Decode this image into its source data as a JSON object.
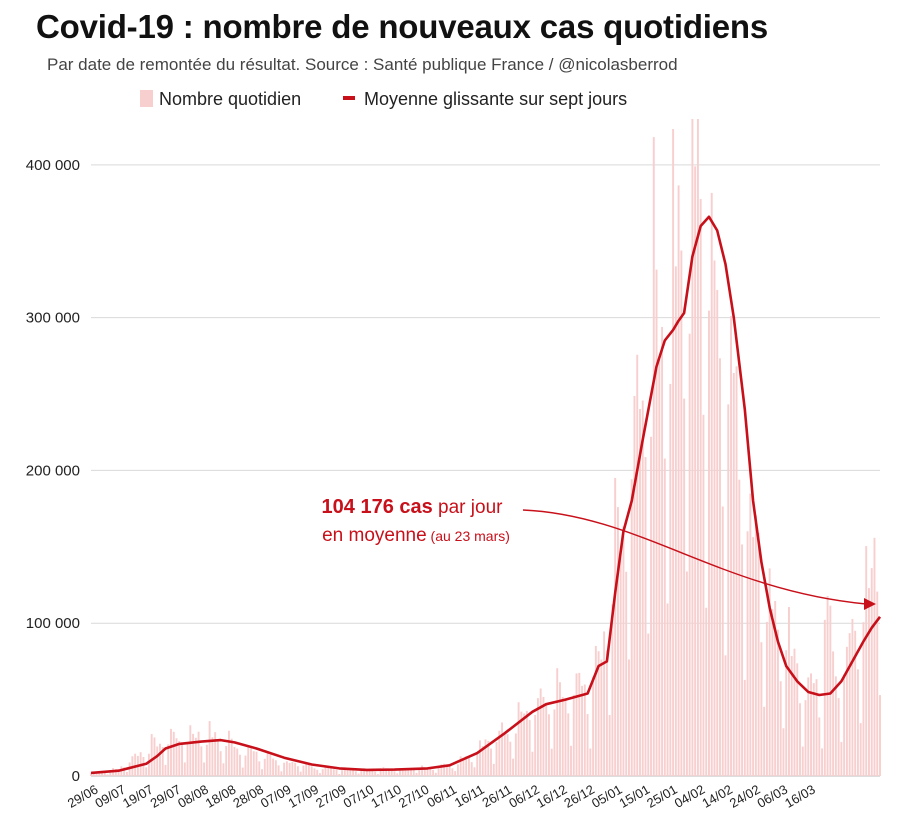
{
  "title": "Covid-19 : nombre de nouveaux cas quotidiens",
  "subtitle": "Par date de remontée du résultat. Source : Santé publique France / @nicolasberrod",
  "colors": {
    "daily_bar": "#f8cfcf",
    "average_line": "#c8101a",
    "grid": "#d9d9d9",
    "annotation": "#c8101a"
  },
  "annotation": {
    "value_text": "104 176 cas",
    "per_day_text": " par jour",
    "line2_text": "en moyenne",
    "date_text": " (au 23 mars)"
  },
  "chart_data": {
    "type": "bar",
    "title": "Covid-19 : nombre de nouveaux cas quotidiens",
    "subtitle": "Par date de remontée du résultat. Source : Santé publique France / @nicolasberrod",
    "xlabel": "",
    "ylabel": "",
    "ylim": [
      0,
      430000
    ],
    "grid": true,
    "legend_placement": "top-center",
    "x_ticks": [
      "29/06",
      "09/07",
      "19/07",
      "29/07",
      "08/08",
      "18/08",
      "28/08",
      "07/09",
      "17/09",
      "27/09",
      "07/10",
      "17/10",
      "27/10",
      "06/11",
      "16/11",
      "26/11",
      "06/12",
      "16/12",
      "26/12",
      "05/01",
      "15/01",
      "25/01",
      "04/02",
      "14/02",
      "24/02",
      "06/03",
      "16/03"
    ],
    "y_ticks": [
      {
        "value": 0,
        "label": "0"
      },
      {
        "value": 100000,
        "label": "100 000"
      },
      {
        "value": 200000,
        "label": "200 000"
      },
      {
        "value": 300000,
        "label": "300 000"
      },
      {
        "value": 400000,
        "label": "400 000"
      }
    ],
    "series": [
      {
        "name": "Nombre quotidien",
        "type": "bar",
        "keypoints": [
          [
            0,
            2000
          ],
          [
            10,
            4500
          ],
          [
            20,
            18000
          ],
          [
            30,
            25000
          ],
          [
            40,
            27000
          ],
          [
            50,
            22000
          ],
          [
            60,
            14000
          ],
          [
            70,
            9000
          ],
          [
            80,
            6000
          ],
          [
            90,
            4500
          ],
          [
            100,
            4000
          ],
          [
            110,
            4500
          ],
          [
            120,
            5500
          ],
          [
            130,
            7000
          ],
          [
            140,
            16000
          ],
          [
            150,
            30000
          ],
          [
            160,
            45000
          ],
          [
            170,
            50000
          ],
          [
            180,
            55000
          ],
          [
            185,
            75000
          ],
          [
            190,
            140000
          ],
          [
            195,
            190000
          ],
          [
            200,
            270000
          ],
          [
            205,
            300000
          ],
          [
            210,
            310000
          ],
          [
            215,
            340000
          ],
          [
            220,
            380000
          ],
          [
            225,
            330000
          ],
          [
            230,
            260000
          ],
          [
            235,
            220000
          ],
          [
            240,
            160000
          ],
          [
            245,
            120000
          ],
          [
            250,
            90000
          ],
          [
            255,
            70000
          ],
          [
            260,
            58000
          ],
          [
            265,
            54000
          ],
          [
            270,
            60000
          ],
          [
            275,
            80000
          ],
          [
            280,
            110000
          ],
          [
            285,
            150000
          ],
          [
            266,
            120000
          ]
        ],
        "weekly_pattern": [
          0.9,
          1.25,
          1.1,
          1.05,
          1.0,
          0.75,
          0.35
        ]
      },
      {
        "name": "Moyenne glissante sur sept jours",
        "type": "line",
        "points": [
          [
            0,
            2000
          ],
          [
            10,
            3500
          ],
          [
            20,
            8000
          ],
          [
            24,
            13000
          ],
          [
            27,
            18000
          ],
          [
            32,
            21000
          ],
          [
            40,
            22500
          ],
          [
            47,
            23500
          ],
          [
            52,
            22000
          ],
          [
            60,
            18000
          ],
          [
            70,
            12000
          ],
          [
            80,
            7500
          ],
          [
            90,
            5000
          ],
          [
            100,
            4000
          ],
          [
            110,
            4200
          ],
          [
            122,
            5000
          ],
          [
            130,
            7000
          ],
          [
            140,
            15000
          ],
          [
            150,
            28000
          ],
          [
            160,
            42000
          ],
          [
            165,
            47000
          ],
          [
            172,
            50000
          ],
          [
            180,
            54000
          ],
          [
            184,
            72000
          ],
          [
            187,
            75000
          ],
          [
            190,
            120000
          ],
          [
            193,
            160000
          ],
          [
            196,
            180000
          ],
          [
            200,
            220000
          ],
          [
            205,
            268000
          ],
          [
            208,
            285000
          ],
          [
            211,
            292000
          ],
          [
            213,
            298000
          ],
          [
            215,
            303000
          ],
          [
            218,
            340000
          ],
          [
            221,
            360000
          ],
          [
            224,
            366000
          ],
          [
            227,
            357000
          ],
          [
            230,
            335000
          ],
          [
            233,
            300000
          ],
          [
            237,
            240000
          ],
          [
            240,
            180000
          ],
          [
            243,
            140000
          ],
          [
            246,
            110000
          ],
          [
            249,
            88000
          ],
          [
            252,
            72000
          ],
          [
            256,
            62000
          ],
          [
            260,
            55000
          ],
          [
            264,
            53000
          ],
          [
            268,
            54000
          ],
          [
            272,
            62000
          ],
          [
            276,
            75000
          ],
          [
            280,
            88000
          ],
          [
            283,
            97000
          ],
          [
            286,
            104176
          ]
        ]
      }
    ]
  }
}
